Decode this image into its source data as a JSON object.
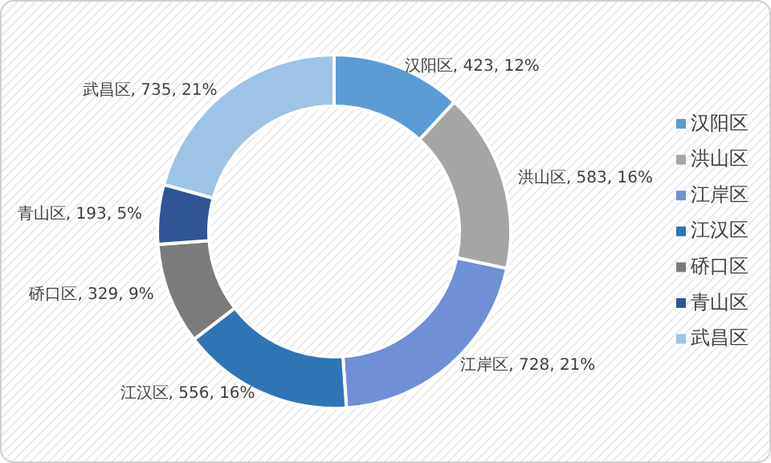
{
  "chart_data": {
    "type": "donut",
    "categories": [
      "汉阳区",
      "洪山区",
      "江岸区",
      "江汉区",
      "硚口区",
      "青山区",
      "武昌区"
    ],
    "values": [
      423,
      583,
      728,
      556,
      329,
      193,
      735
    ],
    "value_labels": [
      "汉阳区, 423, 12%",
      "洪山区, 583, 16%",
      "江岸区, 728, 21%",
      "江汉区, 556, 16%",
      "硚口区, 329, 9%",
      "青山区, 193, 5%",
      "武昌区, 735, 21%"
    ],
    "colors": [
      "#5b9bd5",
      "#a5a5a5",
      "#6f8fd6",
      "#2e75b6",
      "#7b7b7b",
      "#2f5597",
      "#9dc3e6"
    ],
    "legend": "right"
  }
}
